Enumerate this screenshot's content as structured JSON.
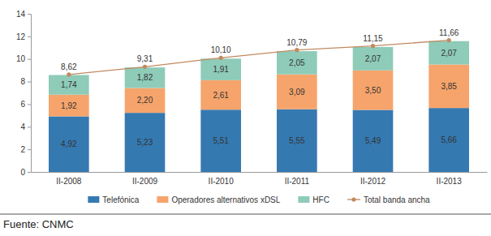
{
  "chart_data": {
    "type": "bar",
    "stacked": true,
    "data_labels": true,
    "grid": false,
    "legend": "bottom",
    "categories": [
      "II-2008",
      "II-2009",
      "II-2010",
      "II-2011",
      "II-2012",
      "II-2013"
    ],
    "ylim": [
      0,
      14
    ],
    "yticks": [
      0,
      2,
      4,
      6,
      8,
      10,
      12,
      14
    ],
    "series": [
      {
        "name": "Telefónica",
        "type": "bar",
        "color": "#3579b1",
        "values": [
          4.92,
          5.23,
          5.51,
          5.55,
          5.49,
          5.66
        ],
        "value_labels": [
          "4,92",
          "5,23",
          "5,51",
          "5,55",
          "5,49",
          "5,66"
        ]
      },
      {
        "name": "Operadores alternativos xDSL",
        "type": "bar",
        "color": "#f6a46b",
        "values": [
          1.92,
          2.2,
          2.61,
          3.09,
          3.5,
          3.85
        ],
        "value_labels": [
          "1,92",
          "2,20",
          "2,61",
          "3,09",
          "3,50",
          "3,85"
        ]
      },
      {
        "name": "HFC",
        "type": "bar",
        "color": "#8ecbb8",
        "values": [
          1.74,
          1.82,
          1.91,
          2.05,
          2.07,
          2.07
        ],
        "value_labels": [
          "1,74",
          "1,82",
          "1,91",
          "2,05",
          "2,07",
          "2,07"
        ]
      },
      {
        "name": "Total banda ancha",
        "type": "line",
        "color": "#c08a60",
        "marker": "circle",
        "values": [
          8.62,
          9.31,
          10.1,
          10.79,
          11.15,
          11.66
        ],
        "value_labels": [
          "8,62",
          "9,31",
          "10,10",
          "10,79",
          "11,15",
          "11,66"
        ]
      }
    ],
    "annotations": [
      "Fuente: CNMC"
    ]
  }
}
